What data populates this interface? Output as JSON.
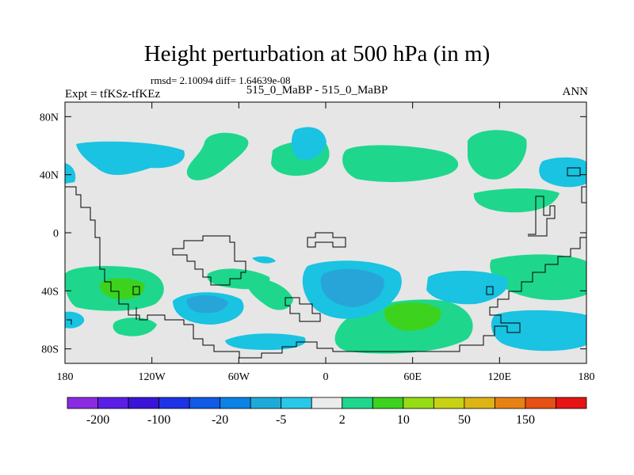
{
  "title": "Height perturbation at 500 hPa (in m)",
  "stats": "rmsd= 2.10094 diff= 1.64639e-08",
  "experiment": "Expt = tfKSz-tfKEz",
  "center_label": "515_0_MaBP - 515_0_MaBP",
  "season": "ANN",
  "chart_data": {
    "type": "contour-map",
    "variable": "500 hPa geopotential height perturbation",
    "units": "m",
    "lat_ticks": [
      "80N",
      "40N",
      "0",
      "40S",
      "80S"
    ],
    "lon_ticks": [
      "180",
      "120W",
      "60W",
      "0",
      "60E",
      "120E",
      "180"
    ],
    "lat_range": [
      -90,
      90
    ],
    "lon_range": [
      -180,
      180
    ],
    "colorbar_labels": [
      "-200",
      "-100",
      "-20",
      "-5",
      "2",
      "10",
      "50",
      "150"
    ],
    "colorbar_colors": [
      "#8a2be2",
      "#5a1ee6",
      "#3a14d8",
      "#1e32e6",
      "#0f5ae6",
      "#0a82e6",
      "#1eaad9",
      "#28c8e6",
      "#ebebeb",
      "#1ed78c",
      "#3cd21e",
      "#96dc14",
      "#c8d214",
      "#dcb414",
      "#e68214",
      "#e65014",
      "#e61414"
    ],
    "colors": {
      "background_neutral": "#e6e6e6",
      "light_blue": "#19c3e1",
      "blue": "#28a5d8",
      "light_green": "#1ed78c",
      "green": "#3cd21e"
    }
  }
}
